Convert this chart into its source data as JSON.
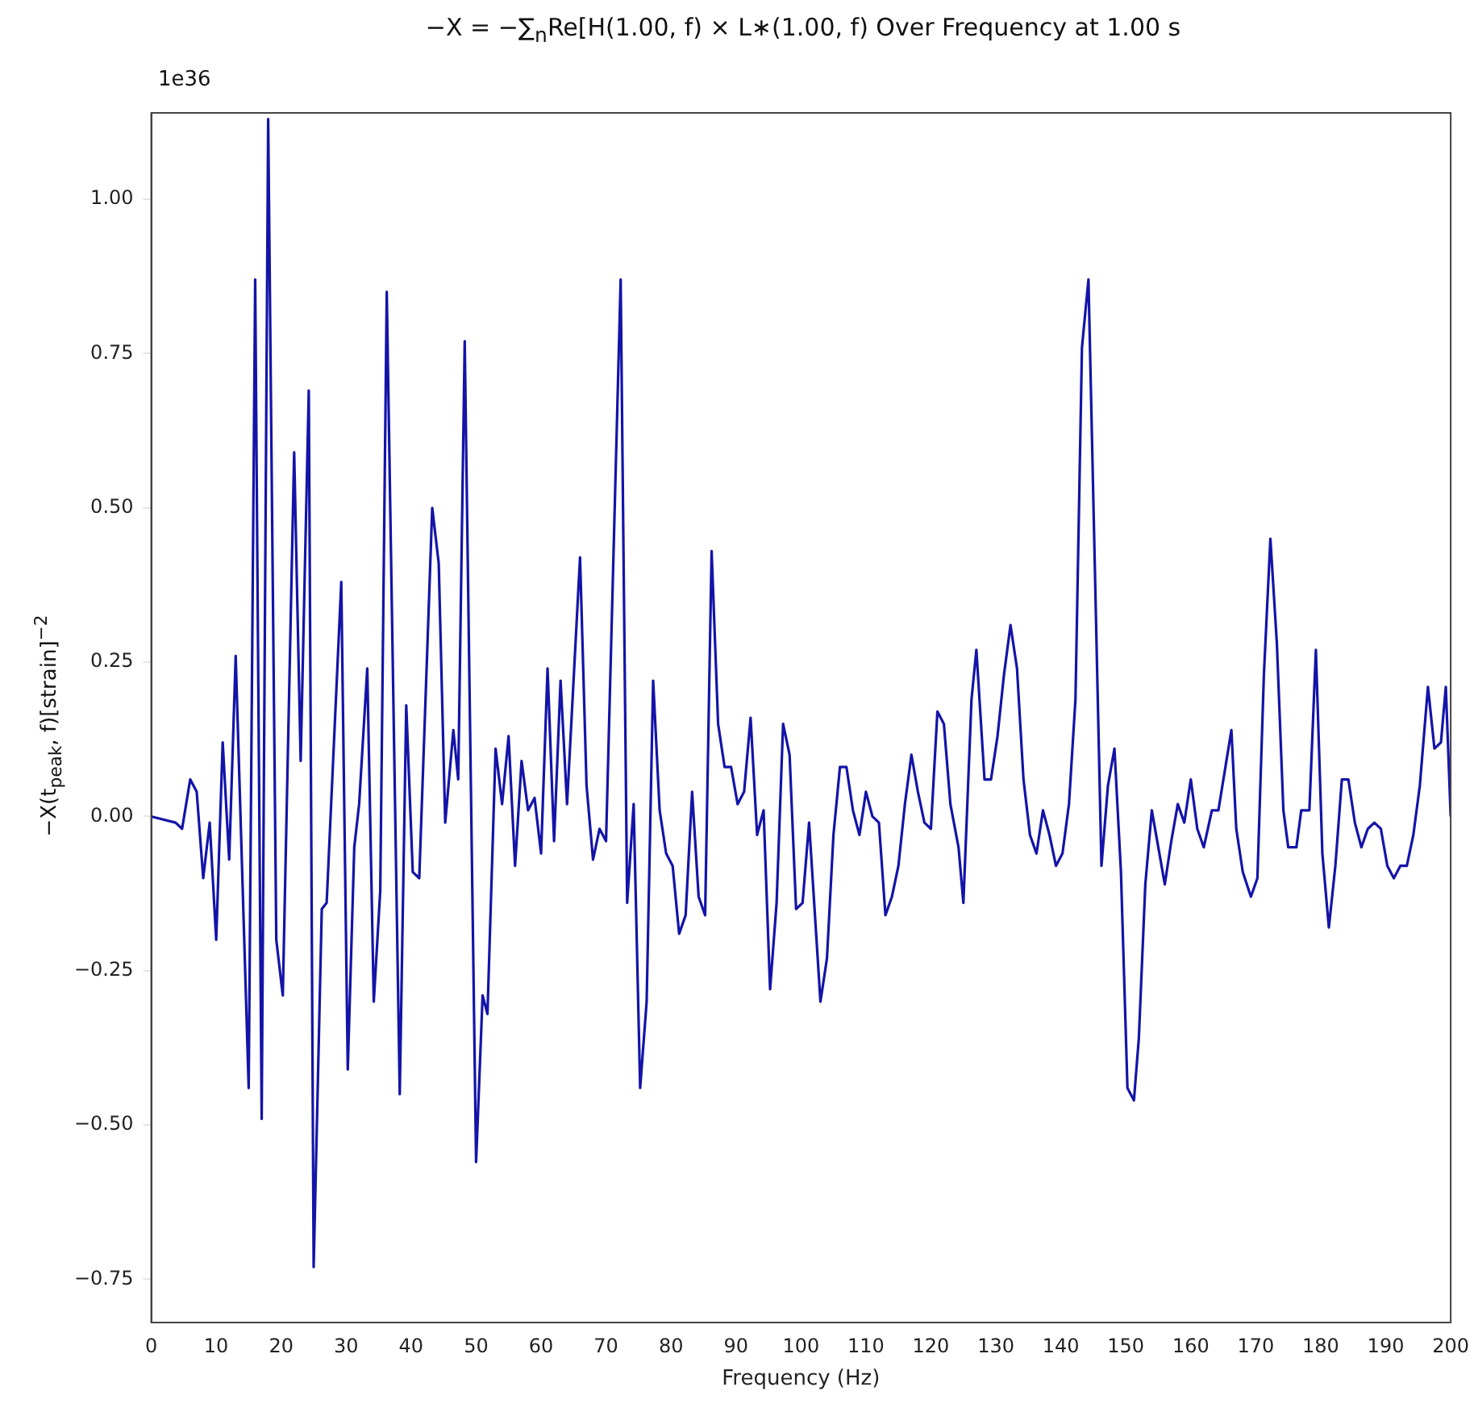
{
  "chart_data": {
    "type": "line",
    "title": "−X = −∑$_{n}$Re[H(1.00, f) × L∗(1.00, f) Over Frequency at 1.00 s",
    "xlabel": "Frequency (Hz)",
    "ylabel": "−X(t$_{peak}$, f)[strain]$^{−2}$",
    "annotations": [
      "1e36"
    ],
    "color": "#1414a8",
    "xlim": [
      0,
      200
    ],
    "xticks": [
      0,
      10,
      20,
      30,
      40,
      50,
      60,
      70,
      80,
      90,
      100,
      110,
      120,
      130,
      140,
      150,
      160,
      170,
      180,
      190,
      200
    ],
    "ylim": [
      -0.82,
      1.14
    ],
    "yticks": [
      {
        "value": -0.75,
        "label": "−0.75"
      },
      {
        "value": -0.5,
        "label": "−0.50"
      },
      {
        "value": -0.25,
        "label": "−0.25"
      },
      {
        "value": 0,
        "label": "0.00"
      },
      {
        "value": 0.25,
        "label": "0.25"
      },
      {
        "value": 0.5,
        "label": "0.50"
      },
      {
        "value": 0.75,
        "label": "0.75"
      },
      {
        "value": 1,
        "label": "1.00"
      }
    ],
    "x": [
      0,
      3.75,
      4.75,
      6,
      7,
      8,
      9,
      10,
      11,
      12,
      13,
      15,
      16,
      17,
      18,
      19.25,
      20.25,
      22,
      23,
      24.25,
      25,
      26.25,
      27,
      29.25,
      30.25,
      31.25,
      32,
      33.25,
      34.25,
      35.25,
      36.25,
      38.25,
      39.25,
      40.25,
      41.25,
      43.25,
      44.25,
      45.25,
      46.5,
      47.25,
      48.25,
      50,
      51,
      51.75,
      53,
      54,
      55,
      56,
      57,
      58,
      59,
      60,
      61,
      62,
      63,
      64,
      66,
      67,
      68,
      69,
      70,
      72.25,
      73.25,
      74.25,
      75.25,
      76.25,
      77.25,
      78.25,
      79.25,
      80.25,
      81.25,
      82.25,
      83.25,
      84.25,
      85.25,
      86.25,
      87.25,
      88.25,
      89.25,
      90.25,
      91.25,
      92.25,
      93.25,
      94.25,
      95.25,
      96.25,
      97.25,
      98.25,
      99.25,
      100.25,
      101.25,
      103,
      104,
      105,
      106,
      107,
      108,
      109,
      110,
      111,
      112,
      113,
      114,
      115,
      116,
      117,
      118,
      119,
      120,
      121,
      122,
      123,
      124.25,
      125,
      126.25,
      127,
      128.25,
      129.25,
      130.25,
      131.25,
      132.25,
      133.25,
      134.25,
      135.25,
      136.25,
      137.25,
      138.25,
      139.25,
      140.25,
      141.25,
      142.25,
      143.25,
      144.25,
      146.25,
      147.25,
      148.25,
      149.25,
      150.25,
      151.25,
      152,
      153,
      154,
      156,
      157,
      158,
      159,
      160,
      161,
      162,
      163.25,
      164.25,
      166.25,
      167,
      168,
      169.25,
      170.25,
      171.25,
      172.25,
      173.25,
      174.25,
      175,
      176.25,
      177,
      178.25,
      179.25,
      180.25,
      181.25,
      182.25,
      183.25,
      184.25,
      185.25,
      186.25,
      187.25,
      188.25,
      189.25,
      190.25,
      191.25,
      192.25,
      193.25,
      194.25,
      195.25,
      196.5,
      197.5,
      198.5,
      199.25,
      200
    ],
    "values": [
      0,
      -0.01,
      -0.02,
      0.06,
      0.04,
      -0.1,
      -0.01,
      -0.2,
      0.12,
      -0.07,
      0.26,
      -0.44,
      0.87,
      -0.49,
      1.13,
      -0.2,
      -0.29,
      0.59,
      0.09,
      0.69,
      -0.73,
      -0.15,
      -0.14,
      0.38,
      -0.41,
      -0.05,
      0.02,
      0.24,
      -0.3,
      -0.12,
      0.85,
      -0.45,
      0.18,
      -0.09,
      -0.1,
      0.5,
      0.41,
      -0.01,
      0.14,
      0.06,
      0.77,
      -0.56,
      -0.29,
      -0.32,
      0.11,
      0.02,
      0.13,
      -0.08,
      0.09,
      0.01,
      0.03,
      -0.06,
      0.24,
      -0.04,
      0.22,
      0.02,
      0.42,
      0.05,
      -0.07,
      -0.02,
      -0.04,
      0.87,
      -0.14,
      0.02,
      -0.44,
      -0.3,
      0.22,
      0.01,
      -0.06,
      -0.08,
      -0.19,
      -0.16,
      0.04,
      -0.13,
      -0.16,
      0.43,
      0.15,
      0.08,
      0.08,
      0.02,
      0.04,
      0.16,
      -0.03,
      0.01,
      -0.28,
      -0.14,
      0.15,
      0.1,
      -0.15,
      -0.14,
      -0.01,
      -0.3,
      -0.23,
      -0.03,
      0.08,
      0.08,
      0.01,
      -0.03,
      0.04,
      0,
      -0.01,
      -0.16,
      -0.13,
      -0.08,
      0.02,
      0.1,
      0.04,
      -0.01,
      -0.02,
      0.17,
      0.15,
      0.02,
      -0.05,
      -0.14,
      0.19,
      0.27,
      0.06,
      0.06,
      0.13,
      0.23,
      0.31,
      0.24,
      0.06,
      -0.03,
      -0.06,
      0.01,
      -0.03,
      -0.08,
      -0.06,
      0.02,
      0.19,
      0.76,
      0.87,
      -0.08,
      0.05,
      0.11,
      -0.09,
      -0.44,
      -0.46,
      -0.36,
      -0.11,
      0.01,
      -0.11,
      -0.04,
      0.02,
      -0.01,
      0.06,
      -0.02,
      -0.05,
      0.01,
      0.01,
      0.14,
      -0.02,
      -0.09,
      -0.13,
      -0.1,
      0.23,
      0.45,
      0.28,
      0.01,
      -0.05,
      -0.05,
      0.01,
      0.01,
      0.27,
      -0.06,
      -0.18,
      -0.08,
      0.06,
      0.06,
      -0.01,
      -0.05,
      -0.02,
      -0.01,
      -0.02,
      -0.08,
      -0.1,
      -0.08,
      -0.08,
      -0.03,
      0.05,
      0.21,
      0.11,
      0.12,
      0.21,
      0
    ]
  }
}
